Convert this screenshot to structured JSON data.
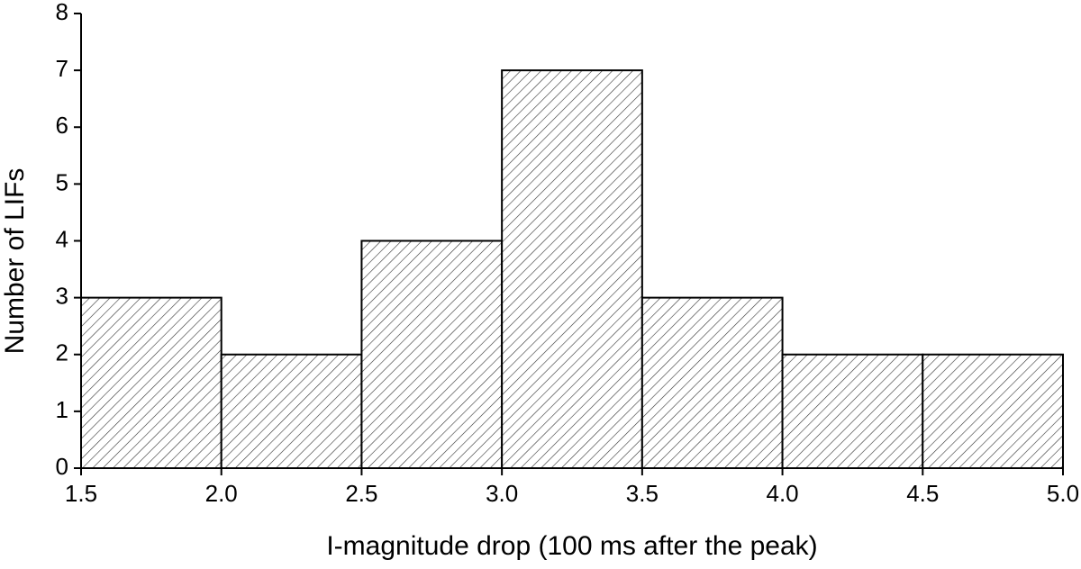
{
  "chart_data": {
    "type": "histogram",
    "x_label": "I-magnitude drop (100 ms after the peak)",
    "y_label": "Number of LIFs",
    "bins": [
      1.5,
      2.0,
      2.5,
      3.0,
      3.5,
      4.0,
      4.5,
      5.0
    ],
    "values": [
      3,
      2,
      4,
      7,
      3,
      2,
      2
    ],
    "color": "#000000",
    "hatch": "diagonal",
    "xlim": [
      1.5,
      5.0
    ],
    "xticks": [
      1.5,
      {
        "value": 2.0,
        "label": "2.0"
      },
      2.5,
      {
        "value": 3.0,
        "label": "3.0"
      },
      3.5,
      {
        "value": 4.0,
        "label": "4.0"
      },
      4.5,
      {
        "value": 5.0,
        "label": "5.0"
      }
    ],
    "ylim": [
      0,
      8
    ],
    "yticks": [
      0,
      1,
      2,
      3,
      4,
      5,
      6,
      7,
      8
    ]
  }
}
